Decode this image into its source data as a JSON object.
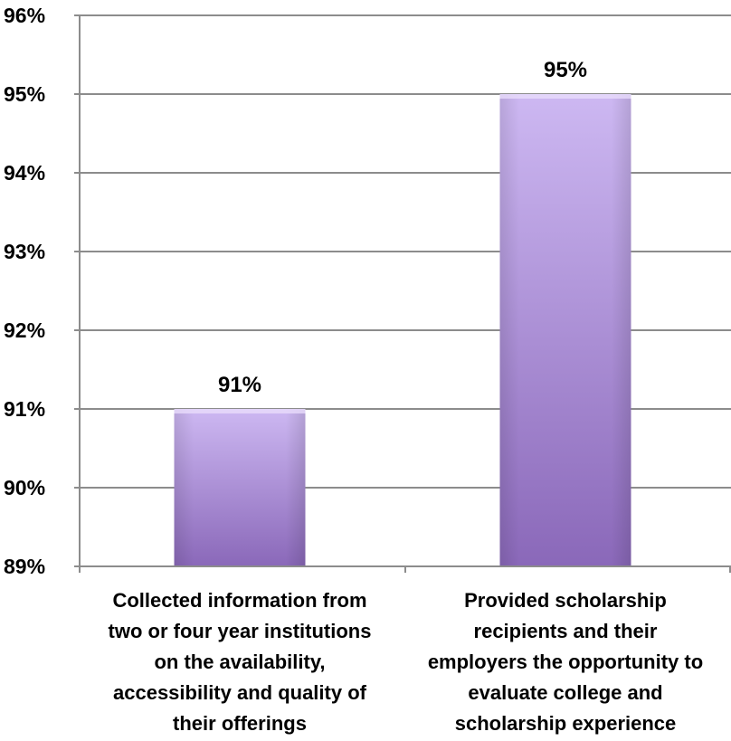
{
  "chart_data": {
    "type": "bar",
    "categories": [
      "Collected information from\ntwo or four year institutions\non the availability,\naccessibility and quality of\ntheir offerings",
      "Provided scholarship\nrecipients and their\nemployers the opportunity to\nevaluate college and\nscholarship experience"
    ],
    "values": [
      91,
      95
    ],
    "value_labels": [
      "91%",
      "95%"
    ],
    "ylim": [
      89,
      96
    ],
    "yticks": [
      "89%",
      "90%",
      "91%",
      "92%",
      "93%",
      "94%",
      "95%",
      "96%"
    ],
    "grid": true,
    "bar_color": "#a98fd4",
    "title": "",
    "xlabel": "",
    "ylabel": ""
  }
}
